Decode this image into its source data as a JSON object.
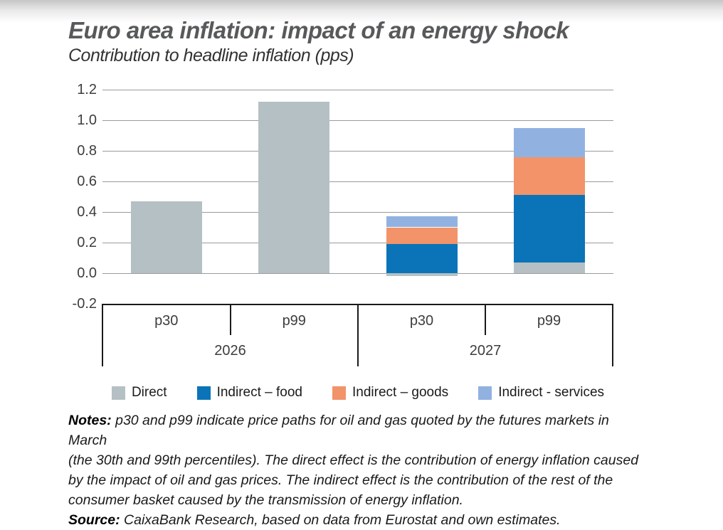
{
  "chart_data": {
    "type": "stacked-bar",
    "title": "Euro area inflation: impact of an energy shock",
    "subtitle": "Contribution to headline inflation (pps)",
    "y_ticks": [
      1.2,
      1.0,
      0.8,
      0.6,
      0.4,
      0.2,
      0.0,
      -0.2
    ],
    "y_min": -0.2,
    "y_max": 1.2,
    "grid": true,
    "legend_position": "bottom",
    "group_labels": [
      "2026",
      "2027"
    ],
    "categories": [
      "p30",
      "p99",
      "p30",
      "p99"
    ],
    "series": [
      {
        "name": "Direct",
        "color": "#b5c0c4",
        "values": [
          0.47,
          1.12,
          -0.02,
          0.07
        ]
      },
      {
        "name": "Indirect – food",
        "color": "#0b74b8",
        "values": [
          0,
          0,
          0.19,
          0.44
        ]
      },
      {
        "name": "Indirect – goods",
        "color": "#f2936a",
        "values": [
          0,
          0,
          0.11,
          0.25
        ]
      },
      {
        "name": "Indirect - services",
        "color": "#91b2e1",
        "values": [
          0,
          0,
          0.07,
          0.19
        ]
      }
    ]
  },
  "notes": {
    "label": "Notes:",
    "lines": [
      "p30 and p99 indicate price paths for oil and gas quoted by the futures markets in March",
      "(the 30th and 99th percentiles). The direct effect is the contribution of energy inflation caused",
      "by the impact of oil and gas prices. The indirect effect is the contribution of the rest of the",
      "consumer basket caused by the transmission of energy inflation."
    ]
  },
  "source": {
    "label": "Source:",
    "text": "CaixaBank Research, based on data from Eurostat and own estimates."
  }
}
